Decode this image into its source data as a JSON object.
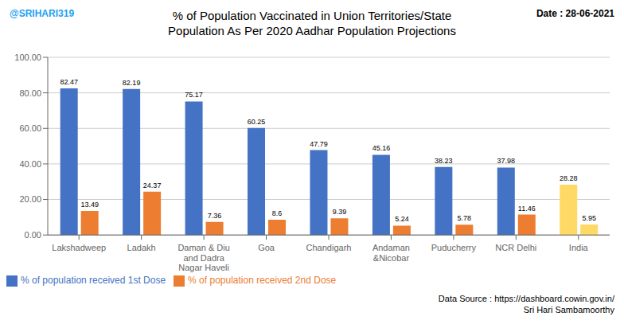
{
  "chart_data": {
    "type": "bar",
    "title": "% of Population Vaccinated in Union Territories/State",
    "subtitle": "Population As Per 2020 Aadhar Population Projections",
    "annotations": [
      "@SRIHARI319",
      "Date : 28-06-2021",
      "Data Source : https://dashboard.cowin.gov.in/\nSri Hari Sambamoorthy"
    ],
    "categories": [
      "Lakshadweep",
      "Ladakh",
      "Daman & Diu\nand Dadra\nNagar Haveli",
      "Goa",
      "Chandigarh",
      "Andaman\n&Nicobar",
      "Puducherry",
      "NCR Delhi",
      "India"
    ],
    "series": [
      {
        "name": "% of population received 1st Dose",
        "color": "#4472C4",
        "colors": [
          "#4472C4",
          "#4472C4",
          "#4472C4",
          "#4472C4",
          "#4472C4",
          "#4472C4",
          "#4472C4",
          "#4472C4",
          "#FFD966"
        ],
        "values": [
          82.47,
          82.19,
          75.17,
          60.25,
          47.79,
          45.16,
          38.23,
          37.98,
          28.28
        ]
      },
      {
        "name": "% of population received 2nd Dose",
        "color": "#ED7D31",
        "colors": [
          "#ED7D31",
          "#ED7D31",
          "#ED7D31",
          "#ED7D31",
          "#ED7D31",
          "#ED7D31",
          "#ED7D31",
          "#ED7D31",
          "#FFD966"
        ],
        "values": [
          13.49,
          24.37,
          7.36,
          8.6,
          9.39,
          5.24,
          5.78,
          11.46,
          5.95
        ]
      }
    ],
    "ylim": [
      0,
      100
    ],
    "yticks": [
      {
        "value": 0,
        "label": "0.00"
      },
      {
        "value": 20,
        "label": "20.00"
      },
      {
        "value": 40,
        "label": "40.00"
      },
      {
        "value": 60,
        "label": "60.00"
      },
      {
        "value": 80,
        "label": "80.00"
      },
      {
        "value": 100,
        "label": "100.00"
      }
    ],
    "grid": true,
    "legend": "lower left",
    "data_labels": true
  }
}
